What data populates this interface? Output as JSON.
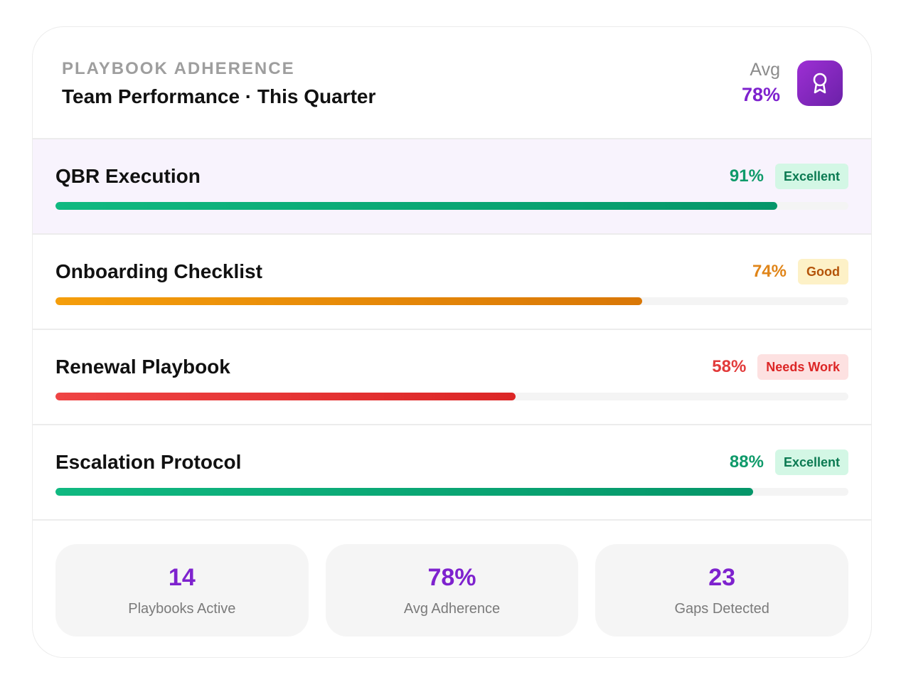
{
  "header": {
    "eyebrow": "PLAYBOOK ADHERENCE",
    "title": "Team Performance · This Quarter",
    "avg_label": "Avg",
    "avg_value": "78%",
    "icon": "award-icon",
    "accent_color": "#7e22ce"
  },
  "playbooks": [
    {
      "name": "QBR Execution",
      "percent_label": "91%",
      "value": 91,
      "status": "Excellent",
      "tone": "green",
      "highlighted": true
    },
    {
      "name": "Onboarding Checklist",
      "percent_label": "74%",
      "value": 74,
      "status": "Good",
      "tone": "orange",
      "highlighted": false
    },
    {
      "name": "Renewal Playbook",
      "percent_label": "58%",
      "value": 58,
      "status": "Needs Work",
      "tone": "red",
      "highlighted": false
    },
    {
      "name": "Escalation Protocol",
      "percent_label": "88%",
      "value": 88,
      "status": "Excellent",
      "tone": "green",
      "highlighted": false
    }
  ],
  "stats": [
    {
      "value": "14",
      "label": "Playbooks Active"
    },
    {
      "value": "78%",
      "label": "Avg Adherence"
    },
    {
      "value": "23",
      "label": "Gaps Detected"
    }
  ]
}
